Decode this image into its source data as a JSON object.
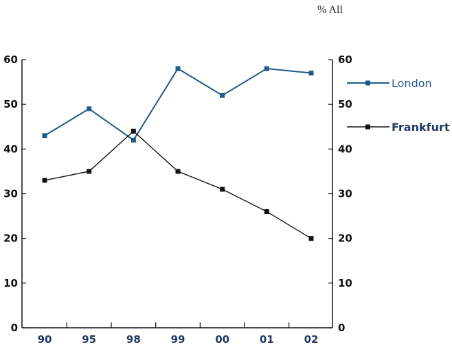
{
  "chart_data": {
    "type": "line",
    "title": "",
    "unit_label": "% All",
    "categories": [
      "90",
      "95",
      "98",
      "99",
      "00",
      "01",
      "02"
    ],
    "series": [
      {
        "name": "London",
        "values": [
          43,
          49,
          42,
          58,
          52,
          58,
          57
        ],
        "color": "#1f5a87"
      },
      {
        "name": "Frankfurt",
        "values": [
          33,
          35,
          44,
          35,
          31,
          26,
          20
        ],
        "color": "#111111"
      }
    ],
    "y_ticks": [
      "0",
      "10",
      "20",
      "30",
      "40",
      "50",
      "60"
    ],
    "ylim": [
      0,
      60
    ],
    "y_axis_sides": "left and right",
    "grid": false,
    "legend_position": "right"
  }
}
